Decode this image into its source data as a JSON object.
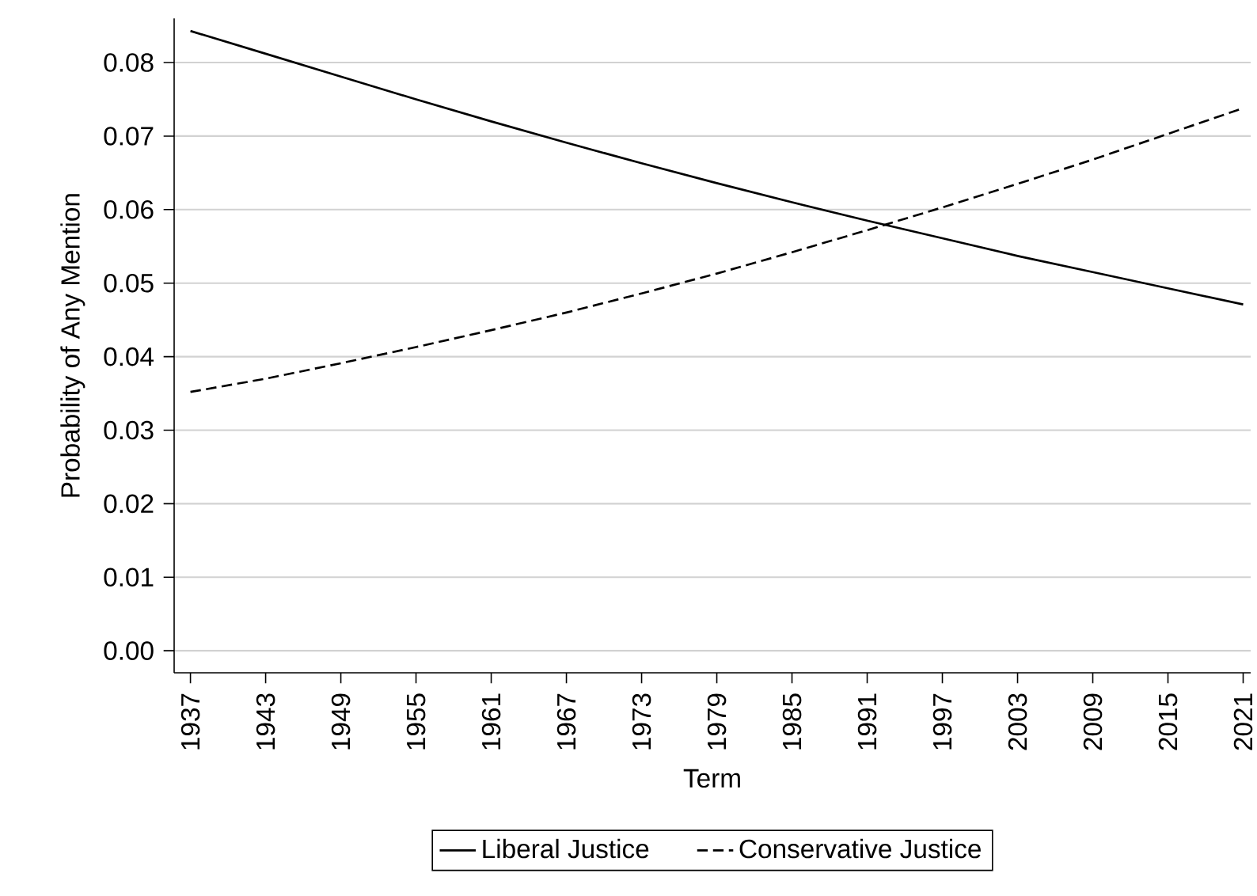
{
  "chart_data": {
    "type": "line",
    "xlabel": "Term",
    "ylabel": "Probability of Any Mention",
    "x": [
      1937,
      1943,
      1949,
      1955,
      1961,
      1967,
      1973,
      1979,
      1985,
      1991,
      1997,
      2003,
      2009,
      2015,
      2021
    ],
    "series": [
      {
        "name": "Liberal Justice",
        "color": "#000000",
        "line_style": "solid",
        "values": [
          0.0843,
          0.0812,
          0.0781,
          0.075,
          0.072,
          0.0691,
          0.0663,
          0.0636,
          0.061,
          0.0585,
          0.0561,
          0.0537,
          0.0515,
          0.0493,
          0.0471
        ]
      },
      {
        "name": "Conservative Justice",
        "color": "#000000",
        "line_style": "dashed",
        "values": [
          0.0352,
          0.037,
          0.0391,
          0.0413,
          0.0436,
          0.046,
          0.0486,
          0.0513,
          0.0542,
          0.0572,
          0.0603,
          0.0635,
          0.0668,
          0.0703,
          0.0738
        ]
      }
    ],
    "xlim": [
      1935.7,
      2021.6
    ],
    "ylim": [
      -0.003,
      0.086
    ],
    "xticks": [
      1937,
      1943,
      1949,
      1955,
      1961,
      1967,
      1973,
      1979,
      1985,
      1991,
      1997,
      2003,
      2009,
      2015,
      2021
    ],
    "yticks": [
      {
        "value": 0,
        "label": "0.00"
      },
      {
        "value": 0.01,
        "label": "0.01"
      },
      {
        "value": 0.02,
        "label": "0.02"
      },
      {
        "value": 0.03,
        "label": "0.03"
      },
      {
        "value": 0.04,
        "label": "0.04"
      },
      {
        "value": 0.05,
        "label": "0.05"
      },
      {
        "value": 0.06,
        "label": "0.06"
      },
      {
        "value": 0.07,
        "label": "0.07"
      },
      {
        "value": 0.08,
        "label": "0.08"
      }
    ],
    "grid": "y",
    "legend": "bottom",
    "marker": "none"
  }
}
